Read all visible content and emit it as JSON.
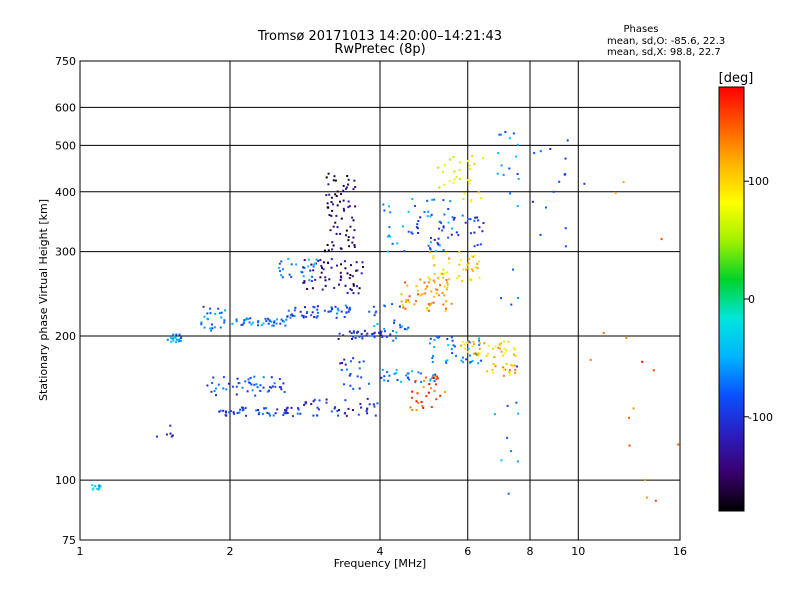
{
  "chart_data": {
    "type": "scatter",
    "title": "Tromsø 20171013 14:20:00–14:21:43",
    "subtitle": "RwPretec (8p)",
    "xlabel": "Frequency [MHz]",
    "ylabel": "Stationary phase Virtual Height [km]",
    "x_scale": "log",
    "y_scale": "log",
    "xlim": [
      1,
      16
    ],
    "ylim": [
      75,
      750
    ],
    "x_ticks": [
      1,
      2,
      4,
      6,
      8,
      10,
      16
    ],
    "x_tick_labels": [
      "1",
      "2",
      "4",
      "6",
      "8",
      "10",
      "16"
    ],
    "y_ticks": [
      75,
      100,
      200,
      300,
      400,
      500,
      600,
      750
    ],
    "y_tick_labels": [
      "75",
      "100",
      "200",
      "300",
      "400",
      "500",
      "600",
      "750"
    ],
    "grid": true,
    "stats": {
      "heading": "Phases",
      "line_o": "mean, sd,O: -85.6, 22.3",
      "line_x": "mean, sd,X:  98.8, 22.7"
    },
    "colorbar": {
      "label": "[deg]",
      "range": [
        -180,
        180
      ],
      "ticks": [
        100,
        0,
        -100
      ],
      "tick_labels": [
        "100",
        "0",
        "-100"
      ]
    },
    "series": [
      {
        "traces": [
          {
            "x": [
              1.05,
              1.1
            ],
            "y": [
              95,
              98
            ],
            "c": -40,
            "n": 10
          },
          {
            "x": [
              1.5,
              1.6
            ],
            "y": [
              193,
              205
            ],
            "c": -55,
            "n": 18
          },
          {
            "x": [
              1.4,
              1.55
            ],
            "y": [
              115,
              130
            ],
            "c": -110,
            "n": 6
          },
          {
            "x": [
              1.75,
              2.0
            ],
            "y": [
              205,
              232
            ],
            "c": -75,
            "n": 24
          },
          {
            "x": [
              2.0,
              2.6
            ],
            "y": [
              210,
              218
            ],
            "c": -70,
            "n": 40
          },
          {
            "x": [
              2.6,
              3.5
            ],
            "y": [
              218,
              232
            ],
            "c": -90,
            "n": 50
          },
          {
            "x": [
              2.8,
              3.7
            ],
            "y": [
              245,
              290
            ],
            "c": -140,
            "n": 60
          },
          {
            "x": [
              3.1,
              3.6
            ],
            "y": [
              300,
              450
            ],
            "c": -150,
            "n": 70
          },
          {
            "x": [
              2.5,
              3.0
            ],
            "y": [
              260,
              290
            ],
            "c": -60,
            "n": 25
          },
          {
            "x": [
              1.8,
              2.6
            ],
            "y": [
              150,
              165
            ],
            "c": -85,
            "n": 50
          },
          {
            "x": [
              1.9,
              2.8
            ],
            "y": [
              136,
              142
            ],
            "c": -95,
            "n": 50
          },
          {
            "x": [
              2.8,
              4.0
            ],
            "y": [
              136,
              148
            ],
            "c": -105,
            "n": 40
          },
          {
            "x": [
              3.3,
              3.8
            ],
            "y": [
              155,
              180
            ],
            "c": -90,
            "n": 20
          },
          {
            "x": [
              3.3,
              4.2
            ],
            "y": [
              197,
              205
            ],
            "c": -110,
            "n": 30
          },
          {
            "x": [
              3.8,
              4.6
            ],
            "y": [
              195,
              235
            ],
            "c": -70,
            "n": 30
          },
          {
            "x": [
              4.0,
              5.6
            ],
            "y": [
              300,
              390
            ],
            "c": -60,
            "n": 40
          },
          {
            "x": [
              4.0,
              5.2
            ],
            "y": [
              160,
              170
            ],
            "c": -65,
            "n": 30
          },
          {
            "x": [
              4.4,
              5.6
            ],
            "y": [
              225,
              265
            ],
            "c": 125,
            "n": 60
          },
          {
            "x": [
              5.0,
              6.5
            ],
            "y": [
              260,
              300
            ],
            "c": 100,
            "n": 40
          },
          {
            "x": [
              4.6,
              5.4
            ],
            "y": [
              140,
              165
            ],
            "c": 150,
            "n": 30
          },
          {
            "x": [
              5.0,
              6.4
            ],
            "y": [
              175,
              200
            ],
            "c": -70,
            "n": 40
          },
          {
            "x": [
              5.8,
              7.5
            ],
            "y": [
              180,
              195
            ],
            "c": 100,
            "n": 40
          },
          {
            "x": [
              6.5,
              7.5
            ],
            "y": [
              165,
              175
            ],
            "c": 110,
            "n": 20
          },
          {
            "x": [
              4.6,
              6.5
            ],
            "y": [
              300,
              360
            ],
            "c": -95,
            "n": 40
          },
          {
            "x": [
              5.2,
              6.5
            ],
            "y": [
              380,
              480
            ],
            "c": 80,
            "n": 30
          },
          {
            "x": [
              6.8,
              7.6
            ],
            "y": [
              90,
              560
            ],
            "c": -60,
            "n": 30
          },
          {
            "x": [
              7.8,
              10.5
            ],
            "y": [
              300,
              520
            ],
            "c": -100,
            "n": 15
          },
          {
            "x": [
              10.5,
              16
            ],
            "y": [
              90,
              450
            ],
            "c": 150,
            "n": 15
          }
        ]
      }
    ]
  },
  "colors": {
    "scale": [
      "#000000",
      "#3a006e",
      "#2a1ec0",
      "#0a50ff",
      "#00b4ff",
      "#00e6dc",
      "#00d22a",
      "#a0f000",
      "#ffff00",
      "#ffb400",
      "#ff5a00",
      "#ff0000"
    ]
  }
}
